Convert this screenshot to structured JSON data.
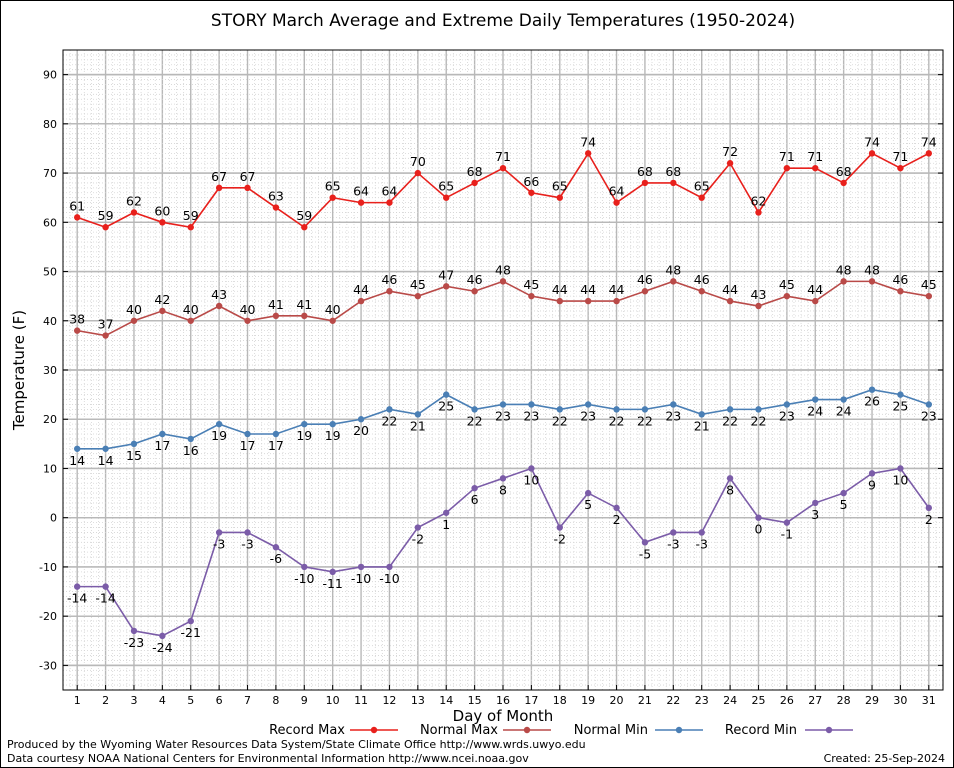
{
  "chart_data": {
    "type": "line",
    "title": "STORY March Average and Extreme Daily Temperatures (1950-2024)",
    "xlabel": "Day of Month",
    "ylabel": "Temperature (F)",
    "ylim": [
      -35,
      95
    ],
    "yticks": [
      -30,
      -20,
      -10,
      0,
      10,
      20,
      30,
      40,
      50,
      60,
      70,
      80,
      90
    ],
    "x": [
      1,
      2,
      3,
      4,
      5,
      6,
      7,
      8,
      9,
      10,
      11,
      12,
      13,
      14,
      15,
      16,
      17,
      18,
      19,
      20,
      21,
      22,
      23,
      24,
      25,
      26,
      27,
      28,
      29,
      30,
      31
    ],
    "grid": true,
    "legend_placement": "bottom",
    "series": [
      {
        "name": "Record Max",
        "color": "#e8201c",
        "values": [
          61,
          59,
          62,
          60,
          59,
          67,
          67,
          63,
          59,
          65,
          64,
          64,
          70,
          65,
          68,
          71,
          66,
          65,
          74,
          64,
          68,
          68,
          65,
          72,
          62,
          71,
          71,
          68,
          74,
          71,
          74
        ],
        "label_pos": "above"
      },
      {
        "name": "Normal Max",
        "color": "#b94a48",
        "values": [
          38,
          37,
          40,
          42,
          40,
          43,
          40,
          41,
          41,
          40,
          44,
          46,
          45,
          47,
          46,
          48,
          45,
          44,
          44,
          44,
          46,
          48,
          46,
          44,
          43,
          45,
          44,
          48,
          48,
          46,
          45
        ],
        "label_pos": "above"
      },
      {
        "name": "Normal Min",
        "color": "#4a7fb5",
        "values": [
          14,
          14,
          15,
          17,
          16,
          19,
          17,
          17,
          19,
          19,
          20,
          22,
          21,
          25,
          22,
          23,
          23,
          22,
          23,
          22,
          22,
          23,
          21,
          22,
          22,
          23,
          24,
          24,
          26,
          25,
          23
        ],
        "label_pos": "below"
      },
      {
        "name": "Record Min",
        "color": "#7b5ca8",
        "values": [
          -14,
          -14,
          -23,
          -24,
          -21,
          -3,
          -3,
          -6,
          -10,
          -11,
          -10,
          -10,
          -2,
          1,
          6,
          8,
          10,
          -2,
          5,
          2,
          -5,
          -3,
          -3,
          8,
          0,
          -1,
          3,
          5,
          9,
          10,
          2
        ],
        "label_pos": "below"
      }
    ]
  },
  "footer": {
    "line1": "Produced by the Wyoming Water Resources Data System/State Climate Office http://www.wrds.uwyo.edu",
    "line2": "Data courtesy NOAA National Centers for Environmental Information http://www.ncei.noaa.gov",
    "created": "Created: 25-Sep-2024"
  }
}
